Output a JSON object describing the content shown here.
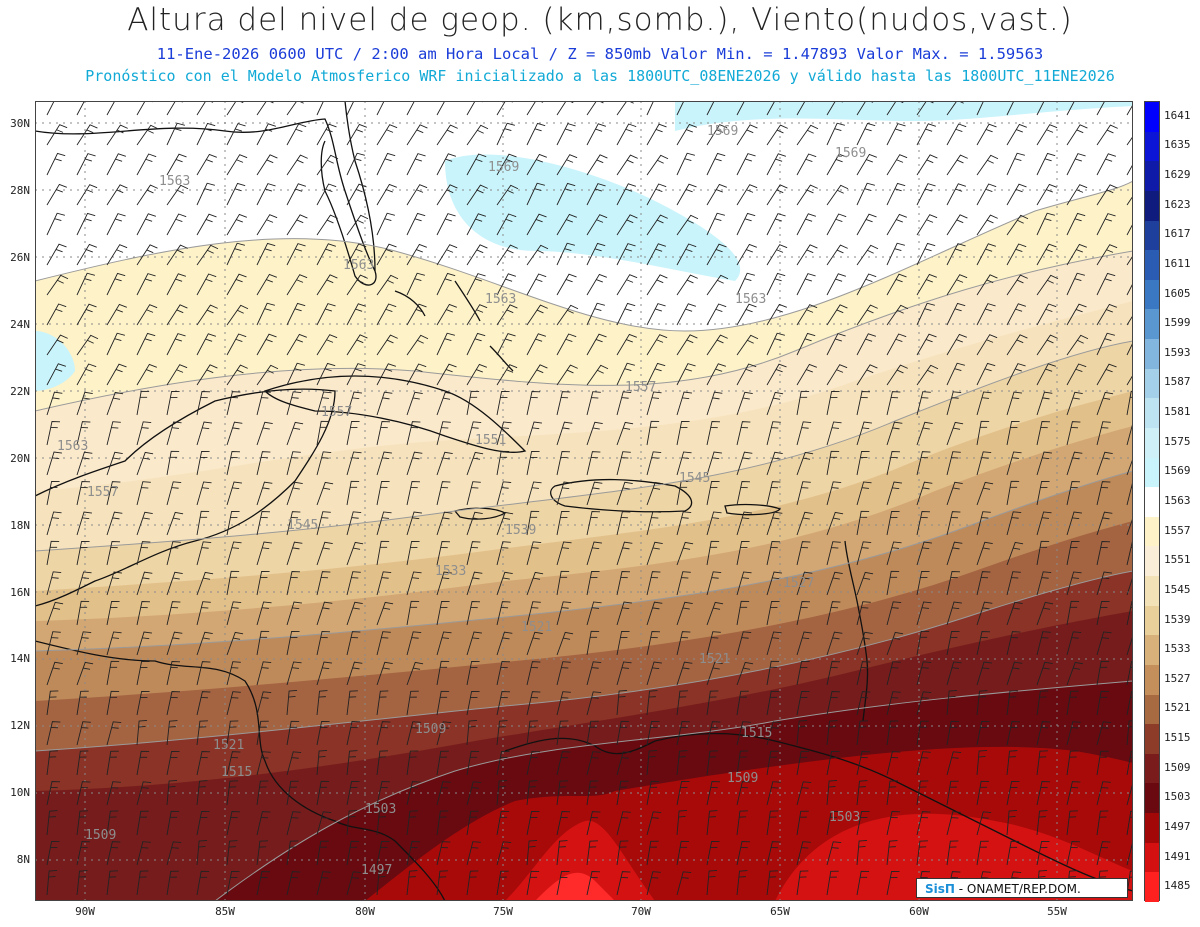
{
  "header": {
    "title": "Altura del nivel de geop. (km,somb.), Viento(nudos,vast.)",
    "subtitle1": "11-Ene-2026  0600 UTC / 2:00 am Hora Local / Z = 850mb    Valor Min. = 1.47893  Valor Max. = 1.59563",
    "subtitle2": "Pronóstico con el Modelo Atmosferico WRF inicializado a las 1800UTC_08ENE2026 y válido hasta las  1800UTC_11ENE2026"
  },
  "axes": {
    "lat_labels": [
      "30N",
      "28N",
      "26N",
      "24N",
      "22N",
      "20N",
      "18N",
      "16N",
      "14N",
      "12N",
      "10N",
      "8N"
    ],
    "lon_labels": [
      "90W",
      "85W",
      "80W",
      "75W",
      "70W",
      "65W",
      "60W",
      "55W"
    ]
  },
  "colorbar": {
    "labels": [
      "1641",
      "1635",
      "1629",
      "1623",
      "1617",
      "1611",
      "1605",
      "1599",
      "1593",
      "1587",
      "1581",
      "1575",
      "1569",
      "1563",
      "1557",
      "1551",
      "1545",
      "1539",
      "1533",
      "1527",
      "1521",
      "1515",
      "1509",
      "1503",
      "1497",
      "1491",
      "1485"
    ],
    "colors": [
      "#0000ff",
      "#0c14d6",
      "#101aa8",
      "#0f1c7e",
      "#1e3f9c",
      "#2a5cb4",
      "#3a78c4",
      "#5a96d0",
      "#82b6df",
      "#a4d0ea",
      "#bee4f2",
      "#d0f0f7",
      "#c9f4fb",
      "#ffffff",
      "#fdf2c8",
      "#fbeed8",
      "#f3e2b8",
      "#e9cf9a",
      "#d7b07a",
      "#c48f5a",
      "#a86a40",
      "#8c3c28",
      "#7a1c1c",
      "#6a0a10",
      "#a20808",
      "#d41010",
      "#ff2020"
    ]
  },
  "contour_labels": [
    "1569",
    "1569",
    "1569",
    "1563",
    "1563",
    "1563",
    "1563",
    "1563",
    "1557",
    "1557",
    "1557",
    "1551",
    "1545",
    "1545",
    "1539",
    "1533",
    "1527",
    "1521",
    "1521",
    "1521",
    "1515",
    "1515",
    "1509",
    "1509",
    "1509",
    "1503",
    "1503",
    "1497"
  ],
  "credit": {
    "brand": "SisΠ",
    "text": "- ONAMET/REP.DOM."
  }
}
